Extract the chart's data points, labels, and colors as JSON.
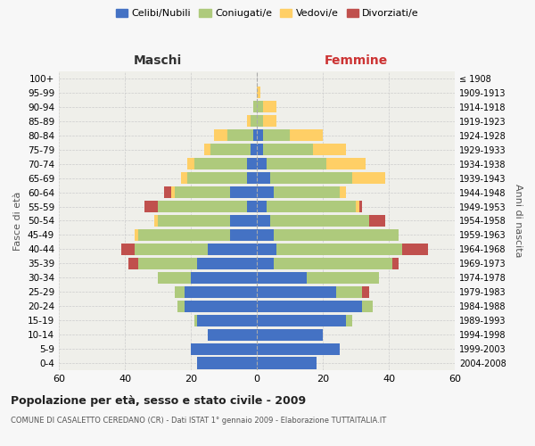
{
  "age_groups": [
    "0-4",
    "5-9",
    "10-14",
    "15-19",
    "20-24",
    "25-29",
    "30-34",
    "35-39",
    "40-44",
    "45-49",
    "50-54",
    "55-59",
    "60-64",
    "65-69",
    "70-74",
    "75-79",
    "80-84",
    "85-89",
    "90-94",
    "95-99",
    "100+"
  ],
  "birth_years": [
    "2004-2008",
    "1999-2003",
    "1994-1998",
    "1989-1993",
    "1984-1988",
    "1979-1983",
    "1974-1978",
    "1969-1973",
    "1964-1968",
    "1959-1963",
    "1954-1958",
    "1949-1953",
    "1944-1948",
    "1939-1943",
    "1934-1938",
    "1929-1933",
    "1924-1928",
    "1919-1923",
    "1914-1918",
    "1909-1913",
    "≤ 1908"
  ],
  "maschi": {
    "celibi": [
      18,
      20,
      15,
      18,
      22,
      22,
      20,
      18,
      15,
      8,
      8,
      3,
      8,
      3,
      3,
      2,
      1,
      0,
      0,
      0,
      0
    ],
    "coniugati": [
      0,
      0,
      0,
      1,
      2,
      3,
      10,
      18,
      22,
      28,
      22,
      27,
      17,
      18,
      16,
      12,
      8,
      2,
      1,
      0,
      0
    ],
    "vedovi": [
      0,
      0,
      0,
      0,
      0,
      0,
      0,
      0,
      0,
      1,
      1,
      0,
      1,
      2,
      2,
      2,
      4,
      1,
      0,
      0,
      0
    ],
    "divorziati": [
      0,
      0,
      0,
      0,
      0,
      0,
      0,
      3,
      4,
      0,
      0,
      4,
      2,
      0,
      0,
      0,
      0,
      0,
      0,
      0,
      0
    ]
  },
  "femmine": {
    "nubili": [
      18,
      25,
      20,
      27,
      32,
      24,
      15,
      5,
      6,
      5,
      4,
      3,
      5,
      4,
      3,
      2,
      2,
      0,
      0,
      0,
      0
    ],
    "coniugate": [
      0,
      0,
      0,
      2,
      3,
      8,
      22,
      36,
      38,
      38,
      30,
      27,
      20,
      25,
      18,
      15,
      8,
      2,
      2,
      0,
      0
    ],
    "vedove": [
      0,
      0,
      0,
      0,
      0,
      0,
      0,
      0,
      0,
      0,
      0,
      1,
      2,
      10,
      12,
      10,
      10,
      4,
      4,
      1,
      0
    ],
    "divorziate": [
      0,
      0,
      0,
      0,
      0,
      2,
      0,
      2,
      8,
      0,
      5,
      1,
      0,
      0,
      0,
      0,
      0,
      0,
      0,
      0,
      0
    ]
  },
  "colors": {
    "celibi": "#4472C4",
    "coniugati": "#AECA7C",
    "vedovi": "#FFCF66",
    "divorziati": "#C0504D"
  },
  "title": "Popolazione per età, sesso e stato civile - 2009",
  "subtitle": "COMUNE DI CASALETTO CEREDANO (CR) - Dati ISTAT 1° gennaio 2009 - Elaborazione TUTTAITALIA.IT",
  "ylabel_left": "Fasce di età",
  "ylabel_right": "Anni di nascita",
  "xlabel_left": "Maschi",
  "xlabel_right": "Femmine",
  "xlim": 60,
  "bg_color": "#f7f7f7",
  "plot_bg": "#efefea"
}
